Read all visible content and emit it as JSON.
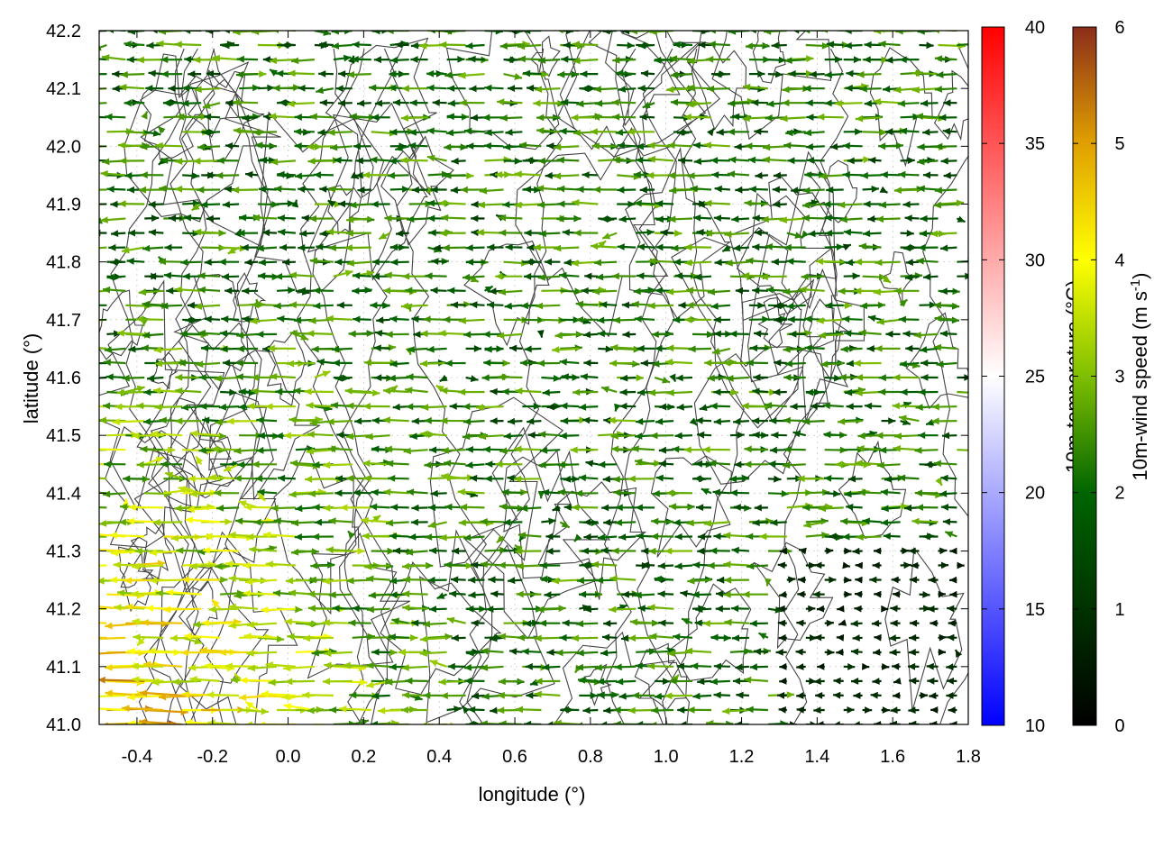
{
  "chart_data": {
    "type": "quiver",
    "xlabel": "longitude (°)",
    "ylabel": "latitude (°)",
    "xlim": [
      -0.5,
      1.8
    ],
    "ylim": [
      41.0,
      42.2
    ],
    "xticks": [
      -0.4,
      -0.2,
      0.0,
      0.2,
      0.4,
      0.6,
      0.8,
      1.0,
      1.2,
      1.4,
      1.6,
      1.8
    ],
    "yticks": [
      41.0,
      41.1,
      41.2,
      41.3,
      41.4,
      41.5,
      41.6,
      41.7,
      41.8,
      41.9,
      42.0,
      42.1,
      42.2
    ],
    "grid": true,
    "contours": true,
    "temperature_colorbar": {
      "label": "10m-temperature (°C)",
      "range": [
        10,
        40
      ],
      "ticks": [
        10,
        15,
        20,
        25,
        30,
        35,
        40
      ],
      "colors": [
        "#0000ff",
        "#ffffff",
        "#ff0000"
      ]
    },
    "wind_speed_colorbar": {
      "label": "10m-wind speed (m s",
      "label_superscript": "-1",
      "label_suffix": ")",
      "range": [
        0,
        6
      ],
      "ticks": [
        0,
        1,
        2,
        3,
        4,
        5,
        6
      ],
      "colors": [
        "#000000",
        "#006400",
        "#7fbf00",
        "#ffff00",
        "#e0a000",
        "#8b2d1a"
      ]
    },
    "wind_field": {
      "description_hint": "arrows pointing mostly westward; strongest winds in the south-west",
      "grid_step_lon": 0.05,
      "grid_step_lat": 0.025
    }
  }
}
